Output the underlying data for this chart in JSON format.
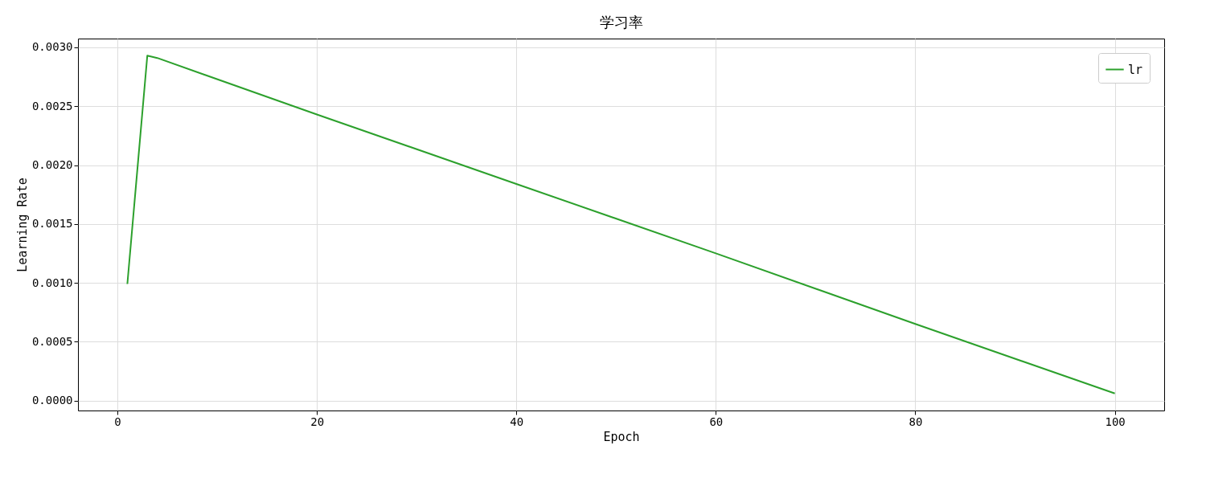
{
  "chart_data": {
    "type": "line",
    "title": "学习率",
    "xlabel": "Epoch",
    "ylabel": "Learning Rate",
    "x": [
      1,
      2,
      3,
      4,
      20,
      40,
      60,
      80,
      100
    ],
    "series": [
      {
        "name": "lr",
        "color": "#2ca02c",
        "values": [
          0.00099,
          0.00196,
          0.00293,
          0.00291,
          0.00243,
          0.00184,
          0.00125,
          0.00065,
          6e-05
        ]
      }
    ],
    "xlim": [
      -3.95,
      104.95
    ],
    "xticks": [
      0,
      20,
      40,
      60,
      80,
      100
    ],
    "ylim": [
      -8.5e-05,
      0.003075
    ],
    "yticks": [
      {
        "value": 0,
        "label": "0.0000"
      },
      {
        "value": 0.0005,
        "label": "0.0005"
      },
      {
        "value": 0.001,
        "label": "0.0010"
      },
      {
        "value": 0.0015,
        "label": "0.0015"
      },
      {
        "value": 0.002,
        "label": "0.0020"
      },
      {
        "value": 0.0025,
        "label": "0.0025"
      },
      {
        "value": 0.003,
        "label": "0.0030"
      }
    ],
    "grid": true,
    "legend": "top right",
    "line_style": "solid",
    "marker": "none"
  }
}
